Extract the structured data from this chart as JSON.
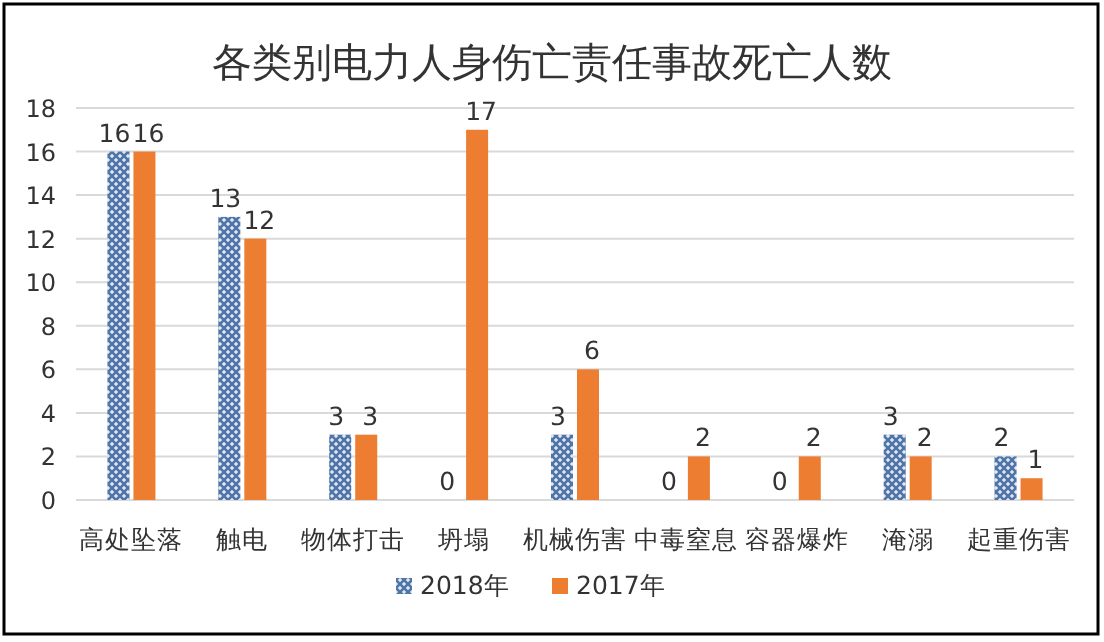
{
  "chart_data": {
    "type": "bar",
    "title": "各类别电力人身伤亡责任事故死亡人数",
    "categories": [
      "高处坠落",
      "触电",
      "物体打击",
      "坍塌",
      "机械伤害",
      "中毒窒息",
      "容器爆炸",
      "淹溺",
      "起重伤害"
    ],
    "series": [
      {
        "name": "2018年",
        "color": "#4f74a8",
        "values": [
          16,
          13,
          3,
          0,
          3,
          0,
          0,
          3,
          2
        ]
      },
      {
        "name": "2017年",
        "color": "#ed7d31",
        "values": [
          16,
          12,
          3,
          17,
          6,
          2,
          2,
          2,
          1
        ]
      }
    ],
    "ylim": [
      0,
      18
    ],
    "yticks": [
      0,
      2,
      4,
      6,
      8,
      10,
      12,
      14,
      16,
      18
    ],
    "grid": "y",
    "legend": "bottom",
    "data_labels": true
  }
}
